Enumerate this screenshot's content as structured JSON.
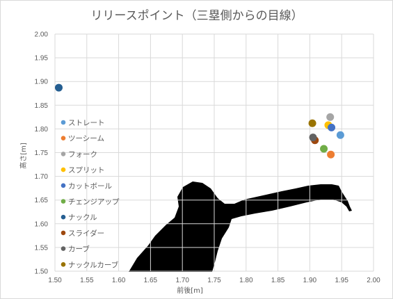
{
  "chart_data": {
    "type": "scatter",
    "title": "リリースポイント（三塁側からの目線）",
    "xlabel": "前後[m]",
    "ylabel": "高さ[m]",
    "xlim": [
      1.5,
      2.0
    ],
    "ylim": [
      1.5,
      2.0
    ],
    "xticks": [
      "1.50",
      "1.55",
      "1.60",
      "1.65",
      "1.70",
      "1.75",
      "1.80",
      "1.85",
      "1.90",
      "1.95",
      "2.00"
    ],
    "yticks": [
      "1.50",
      "1.55",
      "1.60",
      "1.65",
      "1.70",
      "1.75",
      "1.80",
      "1.85",
      "1.90",
      "1.95",
      "2.00"
    ],
    "grid": true,
    "legend_position": "left",
    "series": [
      {
        "name": "ストレート",
        "color": "#5b9bd5",
        "points": [
          {
            "x": 1.948,
            "y": 1.787
          }
        ]
      },
      {
        "name": "ツーシーム",
        "color": "#ed7d31",
        "points": [
          {
            "x": 1.933,
            "y": 1.746
          }
        ]
      },
      {
        "name": "フォーク",
        "color": "#a5a5a5",
        "points": [
          {
            "x": 1.932,
            "y": 1.825
          }
        ]
      },
      {
        "name": "スプリット",
        "color": "#ffc000",
        "points": [
          {
            "x": 1.929,
            "y": 1.808
          }
        ]
      },
      {
        "name": "カットボール",
        "color": "#4472c4",
        "points": [
          {
            "x": 1.934,
            "y": 1.803
          }
        ]
      },
      {
        "name": "チェンジアップ",
        "color": "#70ad47",
        "points": [
          {
            "x": 1.922,
            "y": 1.758
          }
        ]
      },
      {
        "name": "ナックル",
        "color": "#255e91",
        "points": [
          {
            "x": 1.506,
            "y": 1.887
          }
        ]
      },
      {
        "name": "スライダー",
        "color": "#9e480e",
        "points": [
          {
            "x": 1.908,
            "y": 1.776
          }
        ]
      },
      {
        "name": "カーブ",
        "color": "#636363",
        "points": [
          {
            "x": 1.905,
            "y": 1.782
          }
        ]
      },
      {
        "name": "ナックルカーブ",
        "color": "#997300",
        "points": [
          {
            "x": 1.904,
            "y": 1.812
          }
        ]
      }
    ]
  }
}
